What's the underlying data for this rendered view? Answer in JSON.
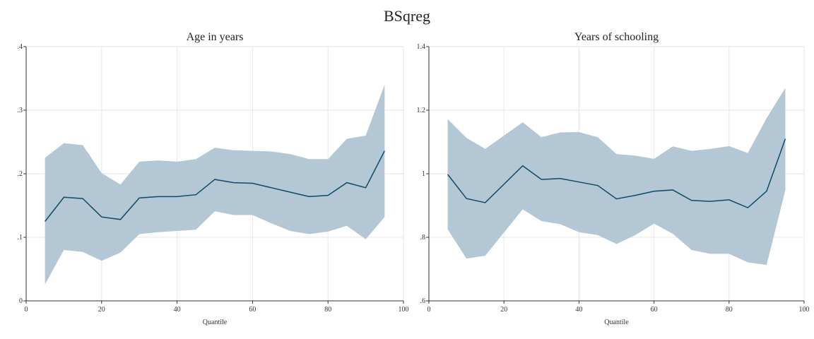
{
  "figure": {
    "title": "BSqreg"
  },
  "colors": {
    "band": "#b3c7d4",
    "line": "#0e4a6b",
    "grid": "#e6e6e6",
    "axis": "#333333"
  },
  "chart_data": [
    {
      "type": "area",
      "title": "Age in years",
      "xlabel": "Quantile",
      "ylabel": "",
      "xlim": [
        0,
        100
      ],
      "ylim": [
        0,
        0.4
      ],
      "xticks": [
        0,
        20,
        40,
        60,
        80,
        100
      ],
      "xtick_labels": [
        "0",
        "20",
        "40",
        "60",
        "80",
        "100"
      ],
      "yticks": [
        0,
        0.1,
        0.2,
        0.3,
        0.4
      ],
      "ytick_labels": [
        "0",
        ".1",
        ".2",
        ".3",
        ".4"
      ],
      "grid": true,
      "x": [
        5,
        10,
        15,
        20,
        25,
        30,
        35,
        40,
        45,
        50,
        55,
        60,
        65,
        70,
        75,
        80,
        85,
        90,
        95
      ],
      "series": [
        {
          "role": "estimate",
          "values": [
            0.125,
            0.163,
            0.161,
            0.132,
            0.128,
            0.162,
            0.164,
            0.164,
            0.167,
            0.191,
            0.186,
            0.185,
            0.178,
            0.171,
            0.164,
            0.166,
            0.186,
            0.178,
            0.236
          ]
        },
        {
          "role": "upper",
          "values": [
            0.225,
            0.248,
            0.245,
            0.201,
            0.183,
            0.219,
            0.221,
            0.219,
            0.223,
            0.241,
            0.237,
            0.236,
            0.235,
            0.231,
            0.223,
            0.223,
            0.255,
            0.26,
            0.34
          ]
        },
        {
          "role": "lower",
          "values": [
            0.026,
            0.08,
            0.077,
            0.063,
            0.076,
            0.105,
            0.108,
            0.11,
            0.112,
            0.141,
            0.135,
            0.135,
            0.122,
            0.11,
            0.105,
            0.109,
            0.118,
            0.097,
            0.132
          ]
        }
      ]
    },
    {
      "type": "area",
      "title": "Years of schooling",
      "xlabel": "Quantile",
      "ylabel": "",
      "xlim": [
        0,
        100
      ],
      "ylim": [
        0.6,
        1.4
      ],
      "xticks": [
        0,
        20,
        40,
        60,
        80,
        100
      ],
      "xtick_labels": [
        "0",
        "20",
        "40",
        "60",
        "80",
        "100"
      ],
      "yticks": [
        0.6,
        0.8,
        1.0,
        1.2,
        1.4
      ],
      "ytick_labels": [
        ".6",
        ".8",
        "1",
        "1.2",
        "1.4"
      ],
      "grid": true,
      "x": [
        5,
        10,
        15,
        20,
        25,
        30,
        35,
        40,
        45,
        50,
        55,
        60,
        65,
        70,
        75,
        80,
        85,
        90,
        95
      ],
      "series": [
        {
          "role": "estimate",
          "values": [
            0.998,
            0.922,
            0.909,
            0.967,
            1.025,
            0.982,
            0.985,
            0.974,
            0.963,
            0.921,
            0.932,
            0.945,
            0.949,
            0.916,
            0.913,
            0.918,
            0.893,
            0.945,
            1.11
          ]
        },
        {
          "role": "upper",
          "values": [
            1.172,
            1.113,
            1.078,
            1.12,
            1.162,
            1.115,
            1.13,
            1.131,
            1.115,
            1.062,
            1.057,
            1.047,
            1.086,
            1.072,
            1.078,
            1.087,
            1.065,
            1.175,
            1.27
          ]
        },
        {
          "role": "lower",
          "values": [
            0.825,
            0.733,
            0.742,
            0.815,
            0.888,
            0.851,
            0.841,
            0.816,
            0.807,
            0.779,
            0.807,
            0.843,
            0.811,
            0.76,
            0.748,
            0.748,
            0.721,
            0.713,
            0.948
          ]
        }
      ]
    }
  ]
}
